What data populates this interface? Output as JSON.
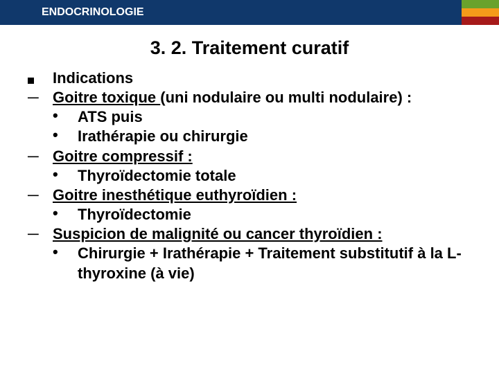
{
  "colors": {
    "header_bg": "#10386b",
    "accent_top": "#6aa22c",
    "accent_mid": "#f59b1a",
    "accent_bottom": "#a61a1a",
    "title_color": "#000000",
    "text_color": "#000000"
  },
  "fonts": {
    "header_size": 16,
    "title_size": 27,
    "body_size": 22
  },
  "header": {
    "label": "ENDOCRINOLOGIE"
  },
  "title": "3. 2. Traitement curatif",
  "content": {
    "section_heading": "Indications",
    "items": [
      {
        "label_pre": "Goitre toxique ",
        "label_post": "(uni nodulaire ou multi nodulaire) :",
        "sub": [
          "ATS puis",
          "Irathérapie ou chirurgie"
        ]
      },
      {
        "label_pre": "Goitre compressif :",
        "label_post": "",
        "sub": [
          "Thyroïdectomie totale"
        ]
      },
      {
        "label_pre": "Goitre inesthétique euthyroïdien :",
        "label_post": "",
        "sub": [
          "Thyroïdectomie"
        ]
      },
      {
        "label_pre": "Suspicion de malignité ou cancer thyroïdien :",
        "label_post": "",
        "sub": [
          "Chirurgie + Irathérapie + Traitement substitutif à la L-thyroxine (à vie)"
        ]
      }
    ]
  }
}
